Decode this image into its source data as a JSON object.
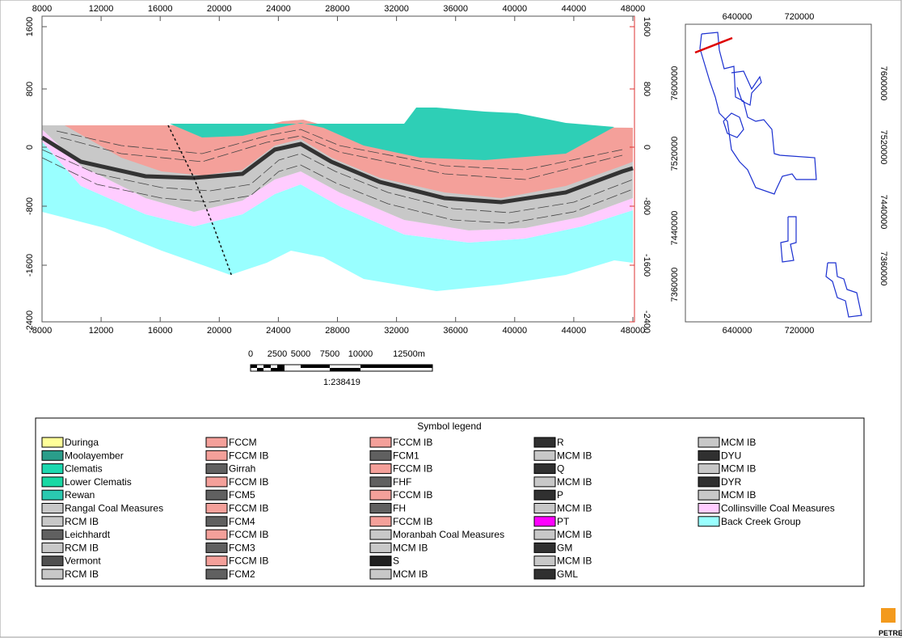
{
  "section": {
    "x_top_ticks": [
      "8000",
      "12000",
      "16000",
      "20000",
      "24000",
      "28000",
      "32000",
      "36000",
      "40000",
      "44000",
      "48000"
    ],
    "x_bottom_ticks": [
      "8000",
      "12000",
      "16000",
      "20000",
      "24000",
      "28000",
      "32000",
      "36000",
      "40000",
      "44000",
      "48000"
    ],
    "y_left_ticks": [
      "1600",
      "800",
      "0",
      "-800",
      "-1600",
      "-2400"
    ],
    "y_right_ticks": [
      "1600",
      "800",
      "0",
      "-800",
      "-1600",
      "-2400"
    ]
  },
  "map": {
    "x_top_ticks": [
      "640000",
      "720000"
    ],
    "x_bottom_ticks": [
      "640000",
      "720000"
    ],
    "y_left_ticks": [
      "7600000",
      "7520000",
      "7440000",
      "7360000"
    ],
    "y_right_ticks": [
      "7600000",
      "7520000",
      "7440000",
      "7360000"
    ]
  },
  "scale_bar": {
    "labels": [
      "0",
      "2500",
      "5000",
      "7500",
      "10000",
      "12500m"
    ],
    "ratio": "1:238419"
  },
  "legend": {
    "title": "Symbol legend",
    "columns": [
      [
        {
          "label": "Duringa",
          "color": "#ffff99"
        },
        {
          "label": "Moolayember",
          "color": "#2a9d8a"
        },
        {
          "label": "Clematis",
          "color": "#1dd9b0"
        },
        {
          "label": "Lower Clematis",
          "color": "#19d9a4"
        },
        {
          "label": "Rewan",
          "color": "#2ac9b0"
        },
        {
          "label": "Rangal Coal Measures",
          "color": "#c8c8c8"
        },
        {
          "label": "RCM IB",
          "color": "#c8c8c8"
        },
        {
          "label": "Leichhardt",
          "color": "#606060"
        },
        {
          "label": "RCM IB",
          "color": "#c8c8c8"
        },
        {
          "label": "Vermont",
          "color": "#505050"
        },
        {
          "label": "RCM IB",
          "color": "#c8c8c8"
        }
      ],
      [
        {
          "label": "FCCM",
          "color": "#f4a09a"
        },
        {
          "label": "FCCM IB",
          "color": "#f4a09a"
        },
        {
          "label": "Girrah",
          "color": "#606060"
        },
        {
          "label": "FCCM IB",
          "color": "#f4a09a"
        },
        {
          "label": "FCM5",
          "color": "#606060"
        },
        {
          "label": "FCCM IB",
          "color": "#f4a09a"
        },
        {
          "label": "FCM4",
          "color": "#606060"
        },
        {
          "label": "FCCM IB",
          "color": "#f4a09a"
        },
        {
          "label": "FCM3",
          "color": "#606060"
        },
        {
          "label": "FCCM IB",
          "color": "#f4a09a"
        },
        {
          "label": "FCM2",
          "color": "#606060"
        }
      ],
      [
        {
          "label": "FCCM IB",
          "color": "#f4a09a"
        },
        {
          "label": "FCM1",
          "color": "#606060"
        },
        {
          "label": "FCCM IB",
          "color": "#f4a09a"
        },
        {
          "label": "FHF",
          "color": "#606060"
        },
        {
          "label": "FCCM IB",
          "color": "#f4a09a"
        },
        {
          "label": "FH",
          "color": "#606060"
        },
        {
          "label": "FCCM IB",
          "color": "#f4a09a"
        },
        {
          "label": "Moranbah Coal Measures",
          "color": "#c8c8c8"
        },
        {
          "label": "MCM IB",
          "color": "#c8c8c8"
        },
        {
          "label": "S",
          "color": "#202020"
        },
        {
          "label": "MCM IB",
          "color": "#c8c8c8"
        }
      ],
      [
        {
          "label": "R",
          "color": "#303030"
        },
        {
          "label": "MCM IB",
          "color": "#c8c8c8"
        },
        {
          "label": "Q",
          "color": "#303030"
        },
        {
          "label": "MCM IB",
          "color": "#c8c8c8"
        },
        {
          "label": "P",
          "color": "#303030"
        },
        {
          "label": "MCM IB",
          "color": "#c8c8c8"
        },
        {
          "label": "PT",
          "color": "#ff00ff"
        },
        {
          "label": "MCM IB",
          "color": "#c8c8c8"
        },
        {
          "label": "GM",
          "color": "#303030"
        },
        {
          "label": "MCM IB",
          "color": "#c8c8c8"
        },
        {
          "label": "GML",
          "color": "#303030"
        }
      ],
      [
        {
          "label": "MCM IB",
          "color": "#c8c8c8"
        },
        {
          "label": "DYU",
          "color": "#303030"
        },
        {
          "label": "MCM IB",
          "color": "#c8c8c8"
        },
        {
          "label": "DYR",
          "color": "#303030"
        },
        {
          "label": "MCM IB",
          "color": "#c8c8c8"
        },
        {
          "label": "Collinsville Coal Measures",
          "color": "#ffccff"
        },
        {
          "label": "Back Creek Group",
          "color": "#99ffff"
        }
      ]
    ]
  },
  "logo": "PETREL"
}
